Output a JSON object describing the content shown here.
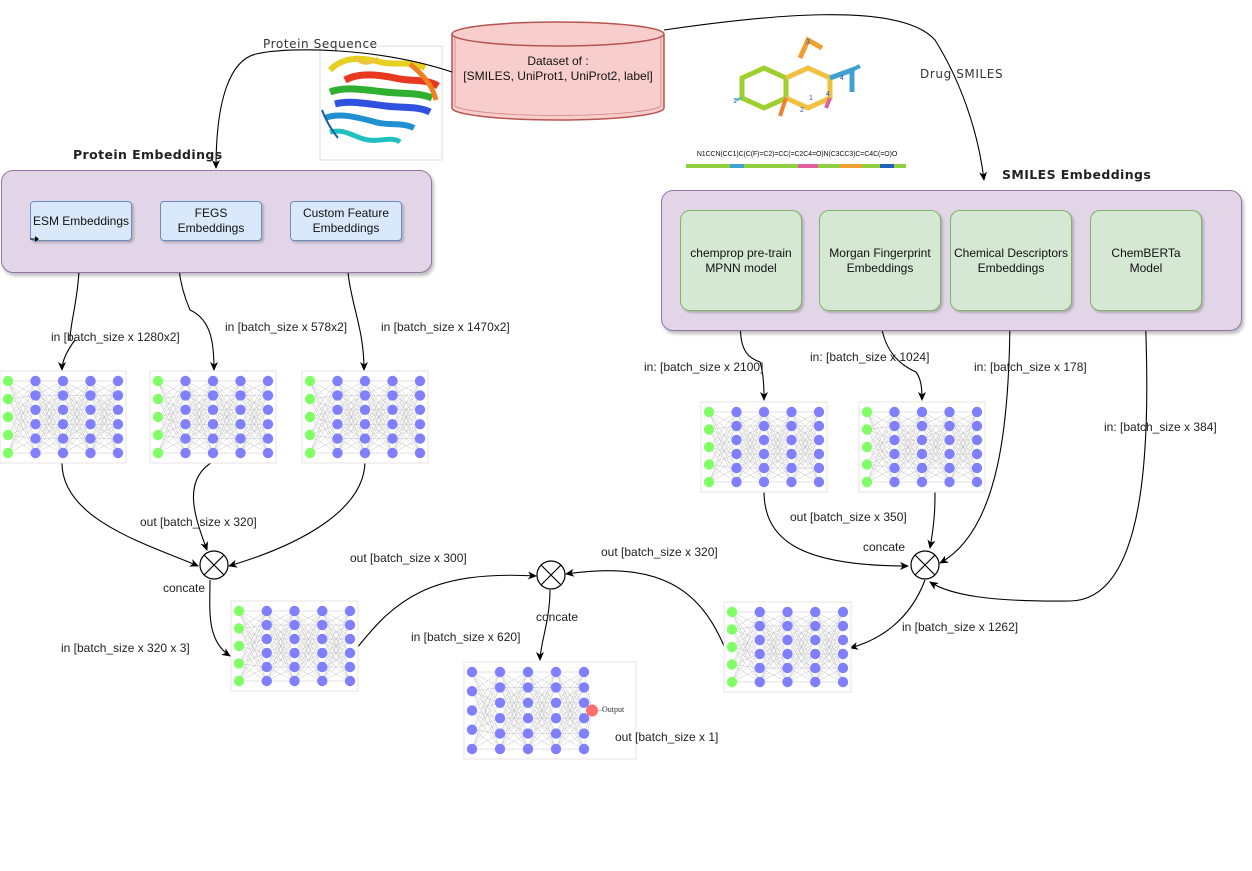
{
  "dataset": {
    "line1": "Dataset of :",
    "line2": "[SMILES, UniProt1, UniProt2, label]"
  },
  "inputs": {
    "protein_sequence": "Protein Sequence",
    "drug_smiles": "Drug SMILES",
    "smiles_string": "N1CCN(CC1)C(C(F)=C2)=CC(=C2C4=O)N(C3CC3)C=C4C(=O)O",
    "protein_image": "protein-3d-structure",
    "molecule_image": "molecule-structure-diagram"
  },
  "protein_group": {
    "title": "Protein Embeddings",
    "boxes": [
      {
        "l1": "ESM Embeddings",
        "l2": ""
      },
      {
        "l1": "FEGS",
        "l2": "Embeddings"
      },
      {
        "l1": "Custom Feature",
        "l2": "Embeddings"
      }
    ]
  },
  "smiles_group": {
    "title": "SMILES Embeddings",
    "boxes": [
      {
        "l1": "chemprop pre-train",
        "l2": "MPNN model"
      },
      {
        "l1": "Morgan Fingerprint",
        "l2": "Embeddings"
      },
      {
        "l1": "Chemical Descriptors",
        "l2": "Embeddings"
      },
      {
        "l1": "ChemBERTa",
        "l2": "Model"
      }
    ]
  },
  "edge_labels": {
    "esm_in": "in [batch_size x 1280x2]",
    "fegs_in": "in [batch_size x 578x2]",
    "custom_in": "in [batch_size x 1470x2]",
    "protein_out": "out [batch_size x 320]",
    "protein_concat": "concate",
    "protein_fused_in": "in [batch_size x 320 x 3]",
    "protein_final_out": "out [batch_size x 300]",
    "chemprop_in": "in: [batch_size x 2100]",
    "morgan_in": "in: [batch_size x 1024]",
    "descriptors_in": "in: [batch_size x 178]",
    "chemberta_in": "in: [batch_size x 384]",
    "smiles_out": "out [batch_size x 350]",
    "smiles_concat": "concate",
    "smiles_fused_in": "in [batch_size x 1262]",
    "smiles_final_out": "out [batch_size x 320]",
    "final_concat": "concate",
    "final_in": "in [batch_size x 620]",
    "final_out": "out [batch_size x 1]",
    "output_node": "Output"
  },
  "colors": {
    "group_fill": "#e1d5e7",
    "group_border": "#9673a6",
    "protein_box_fill": "#dae8fc",
    "protein_box_border": "#6c8ebf",
    "smiles_box_fill": "#d5e8d4",
    "smiles_box_border": "#82b366",
    "dataset_fill": "#f8cecc",
    "dataset_border": "#b85450",
    "nn_input_node": "#80ff66",
    "nn_hidden_node": "#8080ff",
    "nn_output_node": "#ff7070"
  }
}
